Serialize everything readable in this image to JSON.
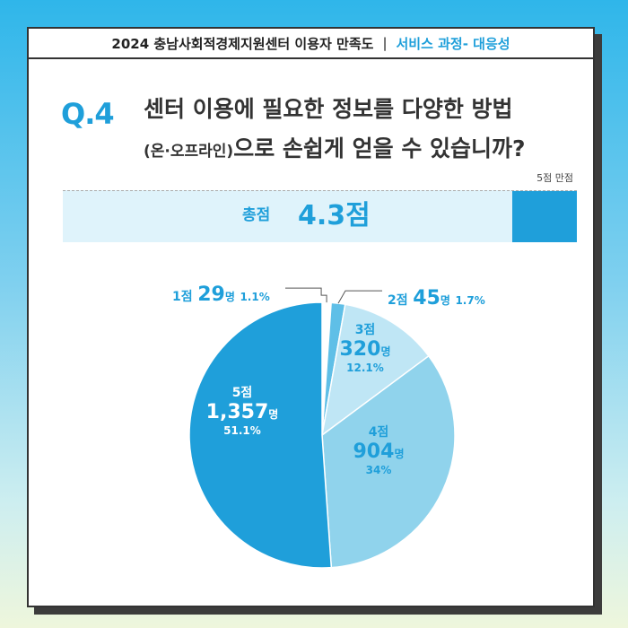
{
  "header": {
    "title": "2024 충남사회적경제지원센터 이용자 만족도",
    "separator": "|",
    "subtitle": "서비스 과정- 대응성"
  },
  "question": {
    "number": "Q.4",
    "line1": "센터 이용에 필요한 정보를 다양한 방법",
    "line2_small": "(온·오프라인)",
    "line2_rest": "으로 손쉽게 얻을 수 있습니까?"
  },
  "score": {
    "scale_note": "5점 만점",
    "label": "총점",
    "value": "4.3점",
    "value_num": 4.3,
    "max": 5
  },
  "colors": {
    "accent": "#1f9fda",
    "slice_5": "#1f9fda",
    "slice_4": "#90d3ec",
    "slice_3": "#bfe6f5",
    "slice_2": "#5fbfe7",
    "slice_1": "#ffffff"
  },
  "chart_data": {
    "type": "pie",
    "slices": [
      {
        "label": "1점",
        "count": 29,
        "count_text": "29",
        "unit": "명",
        "percent": 1.1,
        "percent_text": "1.1%"
      },
      {
        "label": "2점",
        "count": 45,
        "count_text": "45",
        "unit": "명",
        "percent": 1.7,
        "percent_text": "1.7%"
      },
      {
        "label": "3점",
        "count": 320,
        "count_text": "320",
        "unit": "명",
        "percent": 12.1,
        "percent_text": "12.1%"
      },
      {
        "label": "4점",
        "count": 904,
        "count_text": "904",
        "unit": "명",
        "percent": 34,
        "percent_text": "34%"
      },
      {
        "label": "5점",
        "count": 1357,
        "count_text": "1,357",
        "unit": "명",
        "percent": 51.1,
        "percent_text": "51.1%"
      }
    ]
  }
}
